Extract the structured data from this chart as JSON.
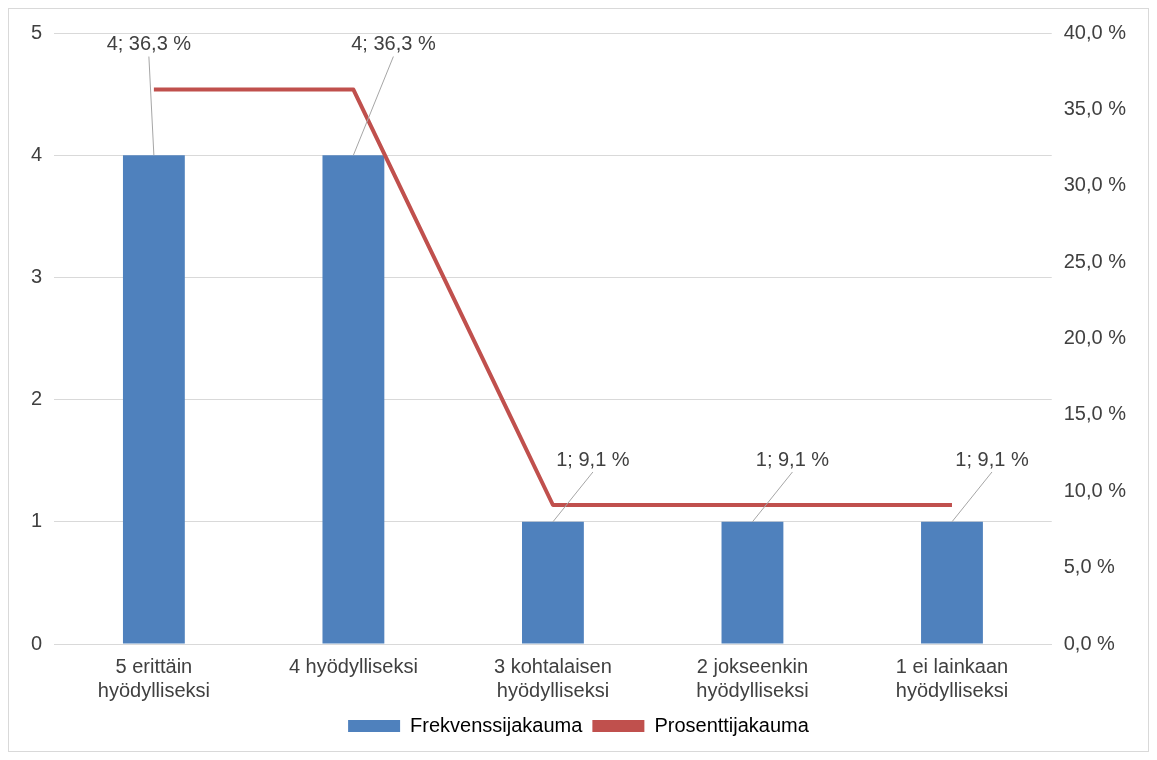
{
  "chart_data": {
    "type": "bar",
    "categories": [
      "5 erittäin hyödylliseksi",
      "4 hyödylliseksi",
      "3 kohtalaisen hyödylliseksi",
      "2 jokseenkin hyödylliseksi",
      "1 ei lainkaan hyödylliseksi"
    ],
    "series": [
      {
        "name": "Frekvenssijakauma",
        "color": "#4f81bd",
        "values": [
          4,
          4,
          1,
          1,
          1
        ],
        "value_labels": [
          "4; 36,3 %",
          "4; 36,3 %",
          "1; 9,1 %",
          "1; 9,1 %",
          "1; 9,1 %"
        ]
      },
      {
        "name": "Prosenttijakauma",
        "type": "line",
        "axis": "y2",
        "color": "#c0504d",
        "values": [
          36.3,
          36.3,
          9.1,
          9.1,
          9.1
        ]
      }
    ],
    "ylim": [
      0,
      5
    ],
    "yticks": [
      0,
      1,
      2,
      3,
      4,
      5
    ],
    "y2lim": [
      0,
      40
    ],
    "y2ticks": [
      {
        "value": 0,
        "label": "0,0 %"
      },
      {
        "value": 5,
        "label": "5,0 %"
      },
      {
        "value": 10,
        "label": "10,0 %"
      },
      {
        "value": 15,
        "label": "15,0 %"
      },
      {
        "value": 20,
        "label": "20,0 %"
      },
      {
        "value": 25,
        "label": "25,0 %"
      },
      {
        "value": 30,
        "label": "30,0 %"
      },
      {
        "value": 35,
        "label": "35,0 %"
      },
      {
        "value": 40,
        "label": "40,0 %"
      }
    ],
    "grid": "y",
    "legend": "bottom",
    "marker": "none"
  }
}
